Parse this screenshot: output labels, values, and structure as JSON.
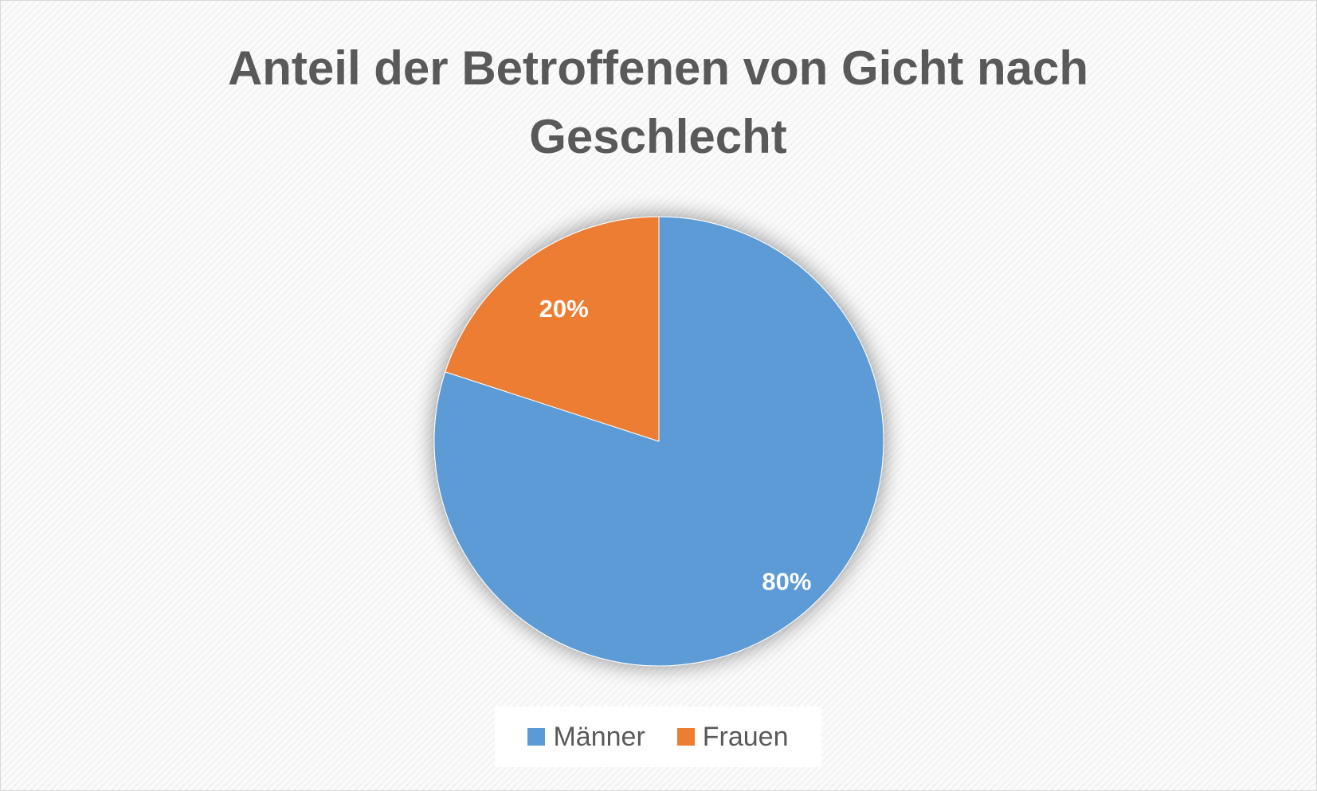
{
  "chart_data": {
    "type": "pie",
    "title": "Anteil der Betroffenen von Gicht nach Geschlecht",
    "categories": [
      "Männer",
      "Frauen"
    ],
    "values": [
      80,
      20
    ],
    "data_labels": [
      "80%",
      "20%"
    ],
    "colors": [
      "#5b9bd5",
      "#ed7d31"
    ],
    "legend": {
      "position": "bottom",
      "entries": [
        "Männer",
        "Frauen"
      ]
    }
  }
}
